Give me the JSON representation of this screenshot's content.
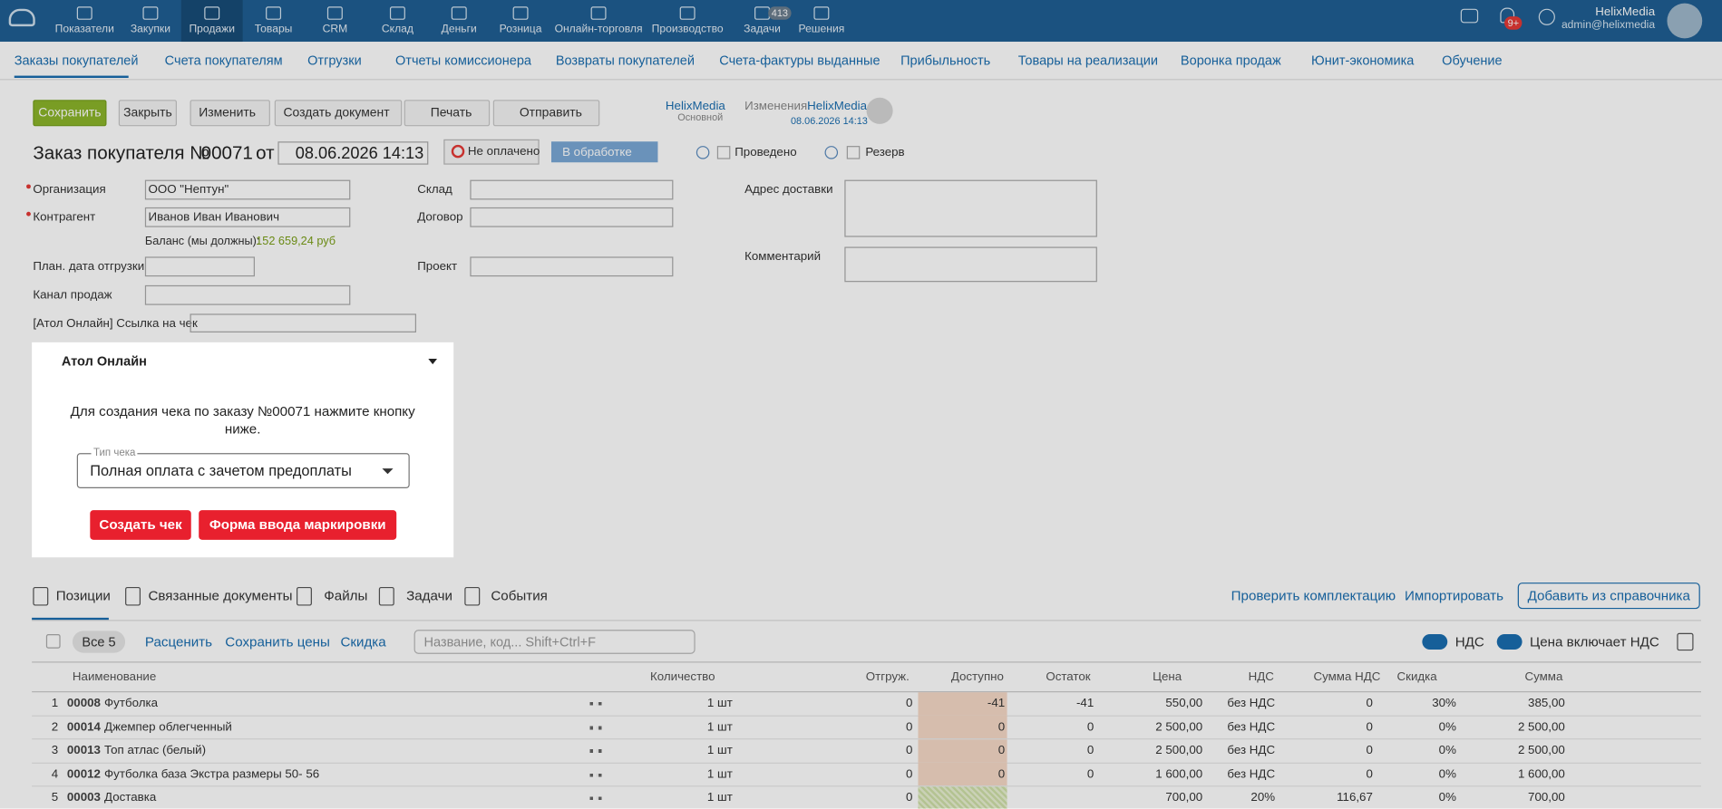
{
  "top_nav": {
    "items": [
      "Показатели",
      "Закупки",
      "Продажи",
      "Товары",
      "CRM",
      "Склад",
      "Деньги",
      "Розница",
      "Онлайн-торговля",
      "Производство",
      "Задачи",
      "Решения"
    ],
    "tasks_badge": "413",
    "notifications_badge": "9+",
    "user_name": "HelixMedia",
    "user_email": "admin@helixmedia"
  },
  "sub_nav": [
    "Заказы покупателей",
    "Счета покупателям",
    "Отгрузки",
    "Отчеты комиссионера",
    "Возвраты покупателей",
    "Счета-фактуры выданные",
    "Прибыльность",
    "Товары на реализации",
    "Воронка продаж",
    "Юнит-экономика",
    "Обучение"
  ],
  "toolbar": {
    "buttons": [
      "Сохранить",
      "Закрыть",
      "Изменить",
      "Создать документ",
      "Печать",
      "Отправить"
    ],
    "owner": "HelixMedia",
    "owner_group": "Основной",
    "changes_label": "Изменения:",
    "changes_user": "HelixMedia",
    "changes_date": "08.06.2026 14:13"
  },
  "header": {
    "title": "Заказ покупателя №",
    "number": "00071",
    "from": "от",
    "date": "08.06.2026 14:13",
    "payment": "Не оплачено",
    "status": "В обработке",
    "posted": "Проведено",
    "reserve": "Резерв"
  },
  "form": {
    "organization_label": "Организация",
    "organization": "ООО \"Нептун\"",
    "counterparty_label": "Контрагент",
    "counterparty": "Иванов Иван Иванович",
    "balance_label": "Баланс (мы должны):",
    "balance": "152 659,24 руб",
    "ship_date_label": "План. дата отгрузки",
    "channel_label": "Канал продаж",
    "atol_link_label": "[Атол Онлайн] Ссылка на чек",
    "warehouse_label": "Склад",
    "contract_label": "Договор",
    "project_label": "Проект",
    "address_label": "Адрес доставки",
    "comment_label": "Комментарий"
  },
  "atol_panel": {
    "title": "Атол Онлайн",
    "message": "Для создания чека по заказу №00071 нажмите кнопку ниже.",
    "receipt_type_label": "Тип чека",
    "receipt_type": "Полная оплата с зачетом предоплаты",
    "create_button": "Создать чек",
    "marking_button": "Форма ввода маркировки"
  },
  "tabs": {
    "items": [
      "Позиции",
      "Связанные документы",
      "Файлы",
      "Задачи",
      "События"
    ],
    "actions": [
      "Проверить комплектацию",
      "Импортировать",
      "Добавить из справочника"
    ]
  },
  "table_toolbar": {
    "all": "Все 5",
    "links": [
      "Расценить",
      "Сохранить цены",
      "Скидка"
    ],
    "search_placeholder": "Название, код... Shift+Ctrl+F",
    "vat": "НДС",
    "price_includes_vat": "Цена включает НДС"
  },
  "table": {
    "columns": [
      "Наименование",
      "Количество",
      "Отгруж.",
      "Доступно",
      "Остаток",
      "Цена",
      "НДС",
      "Сумма НДС",
      "Скидка",
      "Сумма"
    ],
    "rows": [
      [
        "1",
        "00008",
        "Футболка",
        "1 шт",
        "0",
        "-41",
        "-41",
        "550,00",
        "без НДС",
        "0",
        "30%",
        "385,00"
      ],
      [
        "2",
        "00014",
        "Джемпер облегченный",
        "1 шт",
        "0",
        "0",
        "0",
        "2 500,00",
        "без НДС",
        "0",
        "0%",
        "2 500,00"
      ],
      [
        "3",
        "00013",
        "Топ атлас (белый)",
        "1 шт",
        "0",
        "0",
        "0",
        "2 500,00",
        "без НДС",
        "0",
        "0%",
        "2 500,00"
      ],
      [
        "4",
        "00012",
        "Футболка база Экстра размеры 50- 56",
        "1 шт",
        "0",
        "0",
        "0",
        "1 600,00",
        "без НДС",
        "0",
        "0%",
        "1 600,00"
      ],
      [
        "5",
        "00003",
        "Доставка",
        "1 шт",
        "0",
        null,
        null,
        "700,00",
        "20%",
        "116,67",
        "0%",
        "700,00"
      ]
    ]
  }
}
